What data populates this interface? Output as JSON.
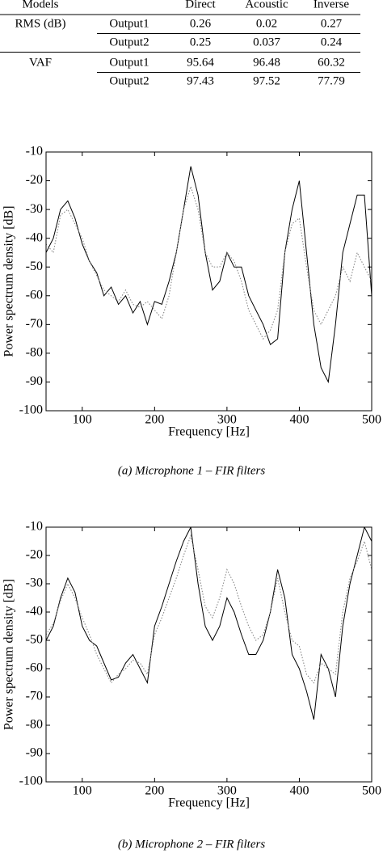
{
  "table": {
    "header": [
      "Models",
      "Direct",
      "Acoustic",
      "Inverse"
    ],
    "groups": [
      {
        "label": "RMS (dB)",
        "rows": [
          [
            "Output1",
            0.26,
            0.02,
            0.27
          ],
          [
            "Output2",
            0.25,
            0.037,
            0.24
          ]
        ]
      },
      {
        "label": "VAF",
        "rows": [
          [
            "Output1",
            95.64,
            96.48,
            60.32
          ],
          [
            "Output2",
            97.43,
            97.52,
            77.79
          ]
        ]
      }
    ]
  },
  "chart_data": [
    {
      "type": "line",
      "caption": "(a) Microphone 1 – FIR filters",
      "xlabel": "Frequency [Hz]",
      "ylabel": "Power spectrum density [dB]",
      "xlim": [
        50,
        500
      ],
      "ylim": [
        -100,
        -10
      ],
      "xticks": [
        100,
        200,
        300,
        400,
        500
      ],
      "yticks": [
        -10,
        -20,
        -30,
        -40,
        -50,
        -60,
        -70,
        -80,
        -90,
        -100
      ],
      "x": [
        50,
        60,
        70,
        80,
        90,
        100,
        110,
        120,
        130,
        140,
        150,
        160,
        170,
        180,
        190,
        200,
        210,
        220,
        230,
        240,
        250,
        260,
        270,
        280,
        290,
        300,
        310,
        320,
        330,
        340,
        350,
        360,
        370,
        380,
        390,
        400,
        410,
        420,
        430,
        440,
        450,
        460,
        470,
        480,
        490,
        500
      ],
      "series": [
        {
          "color": "#000000",
          "style": "solid",
          "values": [
            -45,
            -40,
            -30,
            -27,
            -33,
            -42,
            -48,
            -52,
            -60,
            -57,
            -63,
            -60,
            -66,
            -62,
            -70,
            -62,
            -63,
            -55,
            -45,
            -30,
            -15,
            -25,
            -45,
            -58,
            -55,
            -45,
            -50,
            -50,
            -60,
            -65,
            -70,
            -77,
            -75,
            -45,
            -30,
            -20,
            -45,
            -70,
            -85,
            -90,
            -70,
            -45,
            -35,
            -25,
            -25,
            -60
          ]
        },
        {
          "color": "#888888",
          "style": "dotted",
          "values": [
            -42,
            -45,
            -32,
            -30,
            -35,
            -40,
            -48,
            -53,
            -58,
            -60,
            -62,
            -58,
            -63,
            -64,
            -62,
            -65,
            -68,
            -60,
            -45,
            -30,
            -22,
            -30,
            -45,
            -50,
            -50,
            -45,
            -48,
            -55,
            -65,
            -70,
            -75,
            -72,
            -65,
            -45,
            -35,
            -33,
            -50,
            -65,
            -70,
            -65,
            -60,
            -50,
            -55,
            -45,
            -50,
            -55
          ]
        }
      ]
    },
    {
      "type": "line",
      "caption": "(b) Microphone 2 – FIR filters",
      "xlabel": "Frequency [Hz]",
      "ylabel": "Power spectrum density [dB]",
      "xlim": [
        50,
        500
      ],
      "ylim": [
        -100,
        -10
      ],
      "xticks": [
        100,
        200,
        300,
        400,
        500
      ],
      "yticks": [
        -10,
        -20,
        -30,
        -40,
        -50,
        -60,
        -70,
        -80,
        -90,
        -100
      ],
      "x": [
        50,
        60,
        70,
        80,
        90,
        100,
        110,
        120,
        130,
        140,
        150,
        160,
        170,
        180,
        190,
        200,
        210,
        220,
        230,
        240,
        250,
        260,
        270,
        280,
        290,
        300,
        310,
        320,
        330,
        340,
        350,
        360,
        370,
        380,
        390,
        400,
        410,
        420,
        430,
        440,
        450,
        460,
        470,
        480,
        490,
        500
      ],
      "series": [
        {
          "color": "#000000",
          "style": "solid",
          "values": [
            -50,
            -45,
            -35,
            -28,
            -33,
            -45,
            -50,
            -52,
            -58,
            -64,
            -63,
            -58,
            -55,
            -60,
            -65,
            -45,
            -38,
            -30,
            -22,
            -15,
            -10,
            -30,
            -45,
            -50,
            -45,
            -35,
            -40,
            -48,
            -55,
            -55,
            -50,
            -40,
            -25,
            -35,
            -55,
            -60,
            -68,
            -78,
            -55,
            -60,
            -70,
            -45,
            -30,
            -20,
            -10,
            -15
          ]
        },
        {
          "color": "#888888",
          "style": "dotted",
          "values": [
            -48,
            -44,
            -36,
            -30,
            -35,
            -42,
            -48,
            -55,
            -60,
            -65,
            -62,
            -60,
            -57,
            -58,
            -62,
            -48,
            -42,
            -35,
            -28,
            -20,
            -13,
            -25,
            -38,
            -42,
            -35,
            -25,
            -30,
            -38,
            -45,
            -50,
            -48,
            -40,
            -28,
            -40,
            -50,
            -52,
            -62,
            -65,
            -58,
            -60,
            -62,
            -40,
            -28,
            -22,
            -15,
            -25
          ]
        }
      ]
    }
  ]
}
